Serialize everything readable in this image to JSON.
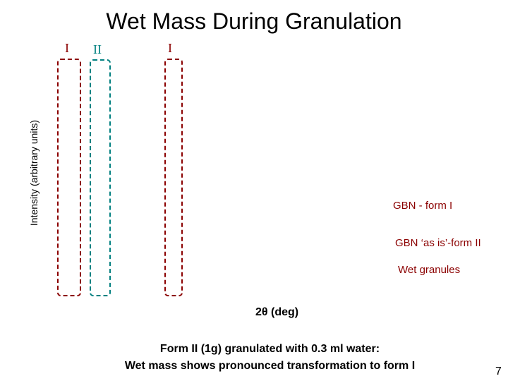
{
  "slide": {
    "title": "Wet Mass During Granulation",
    "page_number": "7",
    "caption_line1": "Form II (1g) granulated with 0.3 ml water:",
    "caption_line2": "Wet mass shows pronounced transformation to form I"
  },
  "chart_data": {
    "type": "line",
    "title": "Wet Mass During Granulation",
    "xlabel": "2θ (deg)",
    "ylabel": "Intensity (arbitrary units)",
    "series": [
      {
        "name": "GBN - form I",
        "color": "#8b0000"
      },
      {
        "name": "GBN ‘as is’-form II",
        "color": "#8b0000"
      },
      {
        "name": "Wet granules",
        "color": "#8b0000"
      }
    ],
    "highlight_bands": [
      {
        "label": "I",
        "color": "#8b0000"
      },
      {
        "label": "II",
        "color": "#008080"
      },
      {
        "label": "I",
        "color": "#8b0000"
      }
    ],
    "grid": false
  }
}
